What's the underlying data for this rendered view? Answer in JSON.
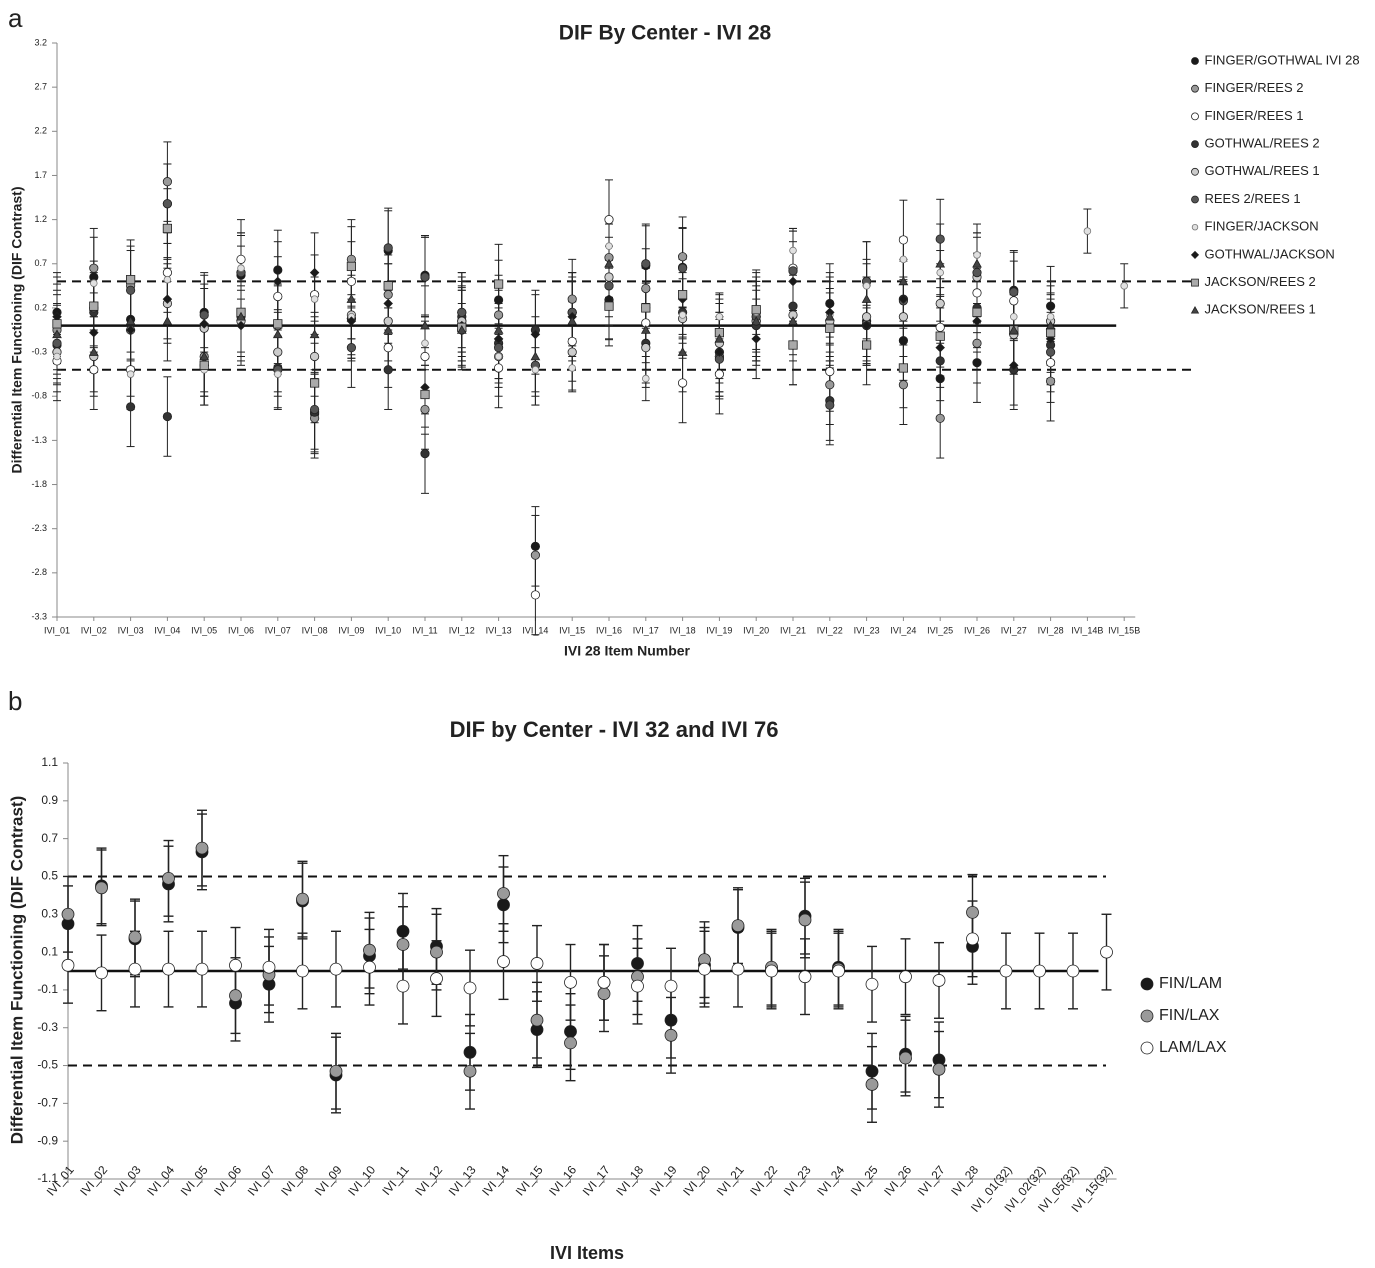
{
  "chart_data": [
    {
      "type": "scatter",
      "panel_label": "a",
      "title": "DIF By Center - IVI 28",
      "x_label": "IVI 28 Item Number",
      "y_label": "Differential Item Functioning (DIF Contrast)",
      "categories": [
        "IVI_01",
        "IVI_02",
        "IVI_03",
        "IVI_04",
        "IVI_05",
        "IVI_06",
        "IVI_07",
        "IVI_08",
        "IVI_09",
        "IVI_10",
        "IVI_11",
        "IVI_12",
        "IVI_13",
        "IVI_14",
        "IVI_15",
        "IVI_16",
        "IVI_17",
        "IVI_18",
        "IVI_19",
        "IVI_20",
        "IVI_21",
        "IVI_22",
        "IVI_23",
        "IVI_24",
        "IVI_25",
        "IVI_26",
        "IVI_27",
        "IVI_28",
        "IVI_14B",
        "IVI_15B"
      ],
      "ylim": [
        -3.3,
        3.2
      ],
      "yticks": [
        3.2,
        2.7,
        2.2,
        1.7,
        1.2,
        0.7,
        0.2,
        -0.3,
        -0.8,
        -1.3,
        -1.8,
        -2.3,
        -2.8,
        -3.3
      ],
      "ref_lines": [
        {
          "value": 0.5,
          "style": "dashed"
        },
        {
          "value": 0,
          "style": "solid"
        },
        {
          "value": -0.5,
          "style": "dashed"
        }
      ],
      "series": [
        {
          "name": "FINGER/GOTHWAL IVI 28",
          "color": "#1a1a1a",
          "marker": "circle",
          "error": 0.45,
          "values": [
            0.15,
            0.55,
            0.07,
            1.38,
            0.15,
            0.57,
            0.63,
            -1.0,
            0.08,
            0.85,
            0.57,
            0.15,
            0.29,
            -2.5,
            0.15,
            0.29,
            0.68,
            0.66,
            -0.35,
            0.15,
            0.62,
            0.25,
            0.05,
            -0.17,
            -0.6,
            -0.42,
            0.4,
            0.22,
            null,
            null
          ]
        },
        {
          "name": "FINGER/REES 2",
          "color": "#999999",
          "marker": "circle",
          "error": 0.45,
          "values": [
            -0.05,
            0.65,
            0.45,
            1.63,
            -0.35,
            0.6,
            0.0,
            -1.05,
            0.75,
            0.35,
            -0.95,
            0.05,
            0.12,
            -2.6,
            0.3,
            0.77,
            0.42,
            0.78,
            -0.35,
            0.05,
            -0.22,
            -0.67,
            0.02,
            -0.67,
            -1.05,
            -0.2,
            -0.1,
            -0.63,
            null,
            null
          ]
        },
        {
          "name": "FINGER/REES 1",
          "color": "#ffffff",
          "marker": "circle",
          "error": 0.45,
          "values": [
            -0.4,
            -0.5,
            -0.5,
            0.6,
            -0.45,
            0.75,
            0.33,
            0.35,
            0.5,
            -0.25,
            -0.35,
            -0.05,
            -0.48,
            -3.05,
            -0.18,
            1.2,
            0.03,
            -0.65,
            -0.55,
            0.1,
            0.65,
            -0.52,
            0.5,
            0.97,
            -0.02,
            0.37,
            0.28,
            -0.42,
            null,
            null
          ]
        },
        {
          "name": "GOTHWAL/REES 2",
          "color": "#333333",
          "marker": "circle",
          "error": 0.45,
          "values": [
            -0.22,
            0.15,
            -0.92,
            -1.03,
            -0.45,
            0.1,
            -0.48,
            -0.98,
            0.08,
            -0.5,
            -1.45,
            0.1,
            -0.2,
            -0.05,
            0.15,
            0.45,
            -0.2,
            0.15,
            -0.3,
            0.0,
            0.22,
            -0.85,
            0.0,
            0.3,
            -0.4,
            0.2,
            -0.5,
            -0.22,
            null,
            null
          ]
        },
        {
          "name": "GOTHWAL/REES 1",
          "color": "#cccccc",
          "marker": "circle",
          "error": 0.45,
          "values": [
            -0.3,
            -0.35,
            -0.05,
            0.25,
            -0.03,
            0.05,
            -0.3,
            -0.35,
            0.12,
            0.05,
            0.55,
            0.05,
            -0.35,
            -0.45,
            -0.3,
            0.55,
            -0.25,
            0.08,
            -0.2,
            0.05,
            0.12,
            0.05,
            0.1,
            0.1,
            0.25,
            0.55,
            -0.1,
            0.05,
            null,
            null
          ]
        },
        {
          "name": "REES 2/REES 1",
          "color": "#555555",
          "marker": "circle",
          "error": 0.45,
          "values": [
            -0.2,
            0.2,
            0.4,
            1.38,
            0.12,
            0.6,
            -0.5,
            -0.95,
            -0.25,
            0.88,
            0.55,
            0.15,
            -0.25,
            -0.45,
            0.15,
            0.45,
            0.7,
            0.65,
            -0.38,
            0.1,
            0.62,
            -0.9,
            0.5,
            0.28,
            0.98,
            0.6,
            0.38,
            -0.3,
            null,
            null
          ]
        },
        {
          "name": "FINGER/JACKSON",
          "color": "#e0e0e0",
          "marker": "dot",
          "error": 0.25,
          "values": [
            -0.35,
            0.48,
            -0.55,
            0.52,
            -0.5,
            0.65,
            -0.55,
            0.3,
            0.1,
            0.45,
            -0.2,
            0.0,
            -0.35,
            -0.5,
            -0.48,
            0.9,
            -0.6,
            0.12,
            0.1,
            0.15,
            0.85,
            0.12,
            0.45,
            0.75,
            0.6,
            0.8,
            0.1,
            0.1,
            1.07,
            0.45
          ]
        },
        {
          "name": "GOTHWAL/JACKSON",
          "color": "#1a1a1a",
          "marker": "diamond",
          "error": 0.45,
          "values": [
            0.1,
            -0.08,
            -0.05,
            0.3,
            0.02,
            0.0,
            0.5,
            0.6,
            0.05,
            0.25,
            -0.7,
            0.0,
            -0.15,
            -0.1,
            0.1,
            0.3,
            0.2,
            0.3,
            -0.3,
            -0.15,
            0.5,
            0.15,
            0.0,
            0.3,
            -0.25,
            0.05,
            -0.45,
            -0.15,
            null,
            null
          ]
        },
        {
          "name": "JACKSON/REES 2",
          "color": "#aaaaaa",
          "marker": "square",
          "error": 0.45,
          "values": [
            0.02,
            0.22,
            0.52,
            1.1,
            -0.45,
            0.15,
            0.02,
            -0.65,
            0.67,
            0.45,
            -0.78,
            -0.02,
            0.47,
            null,
            null,
            0.22,
            0.2,
            0.35,
            -0.08,
            0.18,
            -0.22,
            -0.03,
            -0.22,
            -0.48,
            -0.12,
            0.15,
            -0.05,
            -0.08,
            null,
            null
          ]
        },
        {
          "name": "JACKSON/REES 1",
          "color": "#444444",
          "marker": "triangle",
          "error": 0.45,
          "values": [
            -0.1,
            -0.3,
            0.05,
            0.05,
            -0.35,
            0.1,
            -0.1,
            -0.1,
            0.3,
            -0.05,
            0.0,
            -0.05,
            -0.05,
            -0.35,
            0.05,
            0.7,
            -0.05,
            -0.3,
            -0.15,
            0.05,
            0.05,
            0.1,
            0.3,
            0.5,
            0.7,
            0.7,
            -0.05,
            0.0,
            null,
            null
          ]
        }
      ]
    },
    {
      "type": "scatter",
      "panel_label": "b",
      "title": "DIF by Center - IVI 32 and IVI 76",
      "x_label": "IVI Items",
      "y_label": "Differential Item Functioning (DIF Contrast)",
      "categories": [
        "IVI_01",
        "IVI_02",
        "IVI_03",
        "IVI_04",
        "IVI_05",
        "IVI_06",
        "IVI_07",
        "IVI_08",
        "IVI_09",
        "IVI_10",
        "IVI_11",
        "IVI_12",
        "IVI_13",
        "IVI_14",
        "IVI_15",
        "IVI_16",
        "IVI_17",
        "IVI_18",
        "IVI_19",
        "IVI_20",
        "IVI_21",
        "IVI_22",
        "IVI_23",
        "IVI_24",
        "IVI_25",
        "IVI_26",
        "IVI_27",
        "IVI_28",
        "IVI_01(32)",
        "IVI_02(32)",
        "IVI_05(32)",
        "IVI_15(32)"
      ],
      "ylim": [
        -1.1,
        1.1
      ],
      "yticks": [
        1.1,
        0.9,
        0.7,
        0.5,
        0.3,
        0.1,
        -0.1,
        -0.3,
        -0.5,
        -0.7,
        -0.9,
        -1.1
      ],
      "ref_lines": [
        {
          "value": 0.5,
          "style": "dashed"
        },
        {
          "value": 0,
          "style": "solid"
        },
        {
          "value": -0.5,
          "style": "dashed"
        }
      ],
      "series": [
        {
          "name": "FIN/LAM",
          "color": "#1a1a1a",
          "marker": "circle",
          "error": 0.2,
          "values": [
            0.25,
            0.45,
            0.17,
            0.46,
            0.63,
            -0.17,
            -0.07,
            0.37,
            -0.55,
            0.08,
            0.21,
            0.13,
            -0.43,
            0.35,
            -0.31,
            -0.32,
            -0.06,
            0.04,
            -0.26,
            0.03,
            0.23,
            0.01,
            0.29,
            0.02,
            -0.53,
            -0.44,
            -0.47,
            0.13,
            null,
            null,
            null,
            null
          ]
        },
        {
          "name": "FIN/LAX",
          "color": "#9a9a9a",
          "marker": "circle",
          "error": 0.2,
          "values": [
            0.3,
            0.44,
            0.18,
            0.49,
            0.65,
            -0.13,
            -0.02,
            0.38,
            -0.53,
            0.11,
            0.14,
            0.1,
            -0.53,
            0.41,
            -0.26,
            -0.38,
            -0.12,
            -0.03,
            -0.34,
            0.06,
            0.24,
            0.02,
            0.27,
            0.01,
            -0.6,
            -0.46,
            -0.52,
            0.31,
            null,
            null,
            null,
            null
          ]
        },
        {
          "name": "LAM/LAX",
          "color": "#ffffff",
          "marker": "circle",
          "error": 0.2,
          "values": [
            0.03,
            -0.01,
            0.01,
            0.01,
            0.01,
            0.03,
            0.02,
            0.0,
            0.01,
            0.02,
            -0.08,
            -0.04,
            -0.09,
            0.05,
            0.04,
            -0.06,
            -0.06,
            -0.08,
            -0.08,
            0.01,
            0.01,
            0.0,
            -0.03,
            0.0,
            -0.07,
            -0.03,
            -0.05,
            0.17,
            0.0,
            0.0,
            0.0,
            0.1
          ]
        }
      ]
    }
  ]
}
